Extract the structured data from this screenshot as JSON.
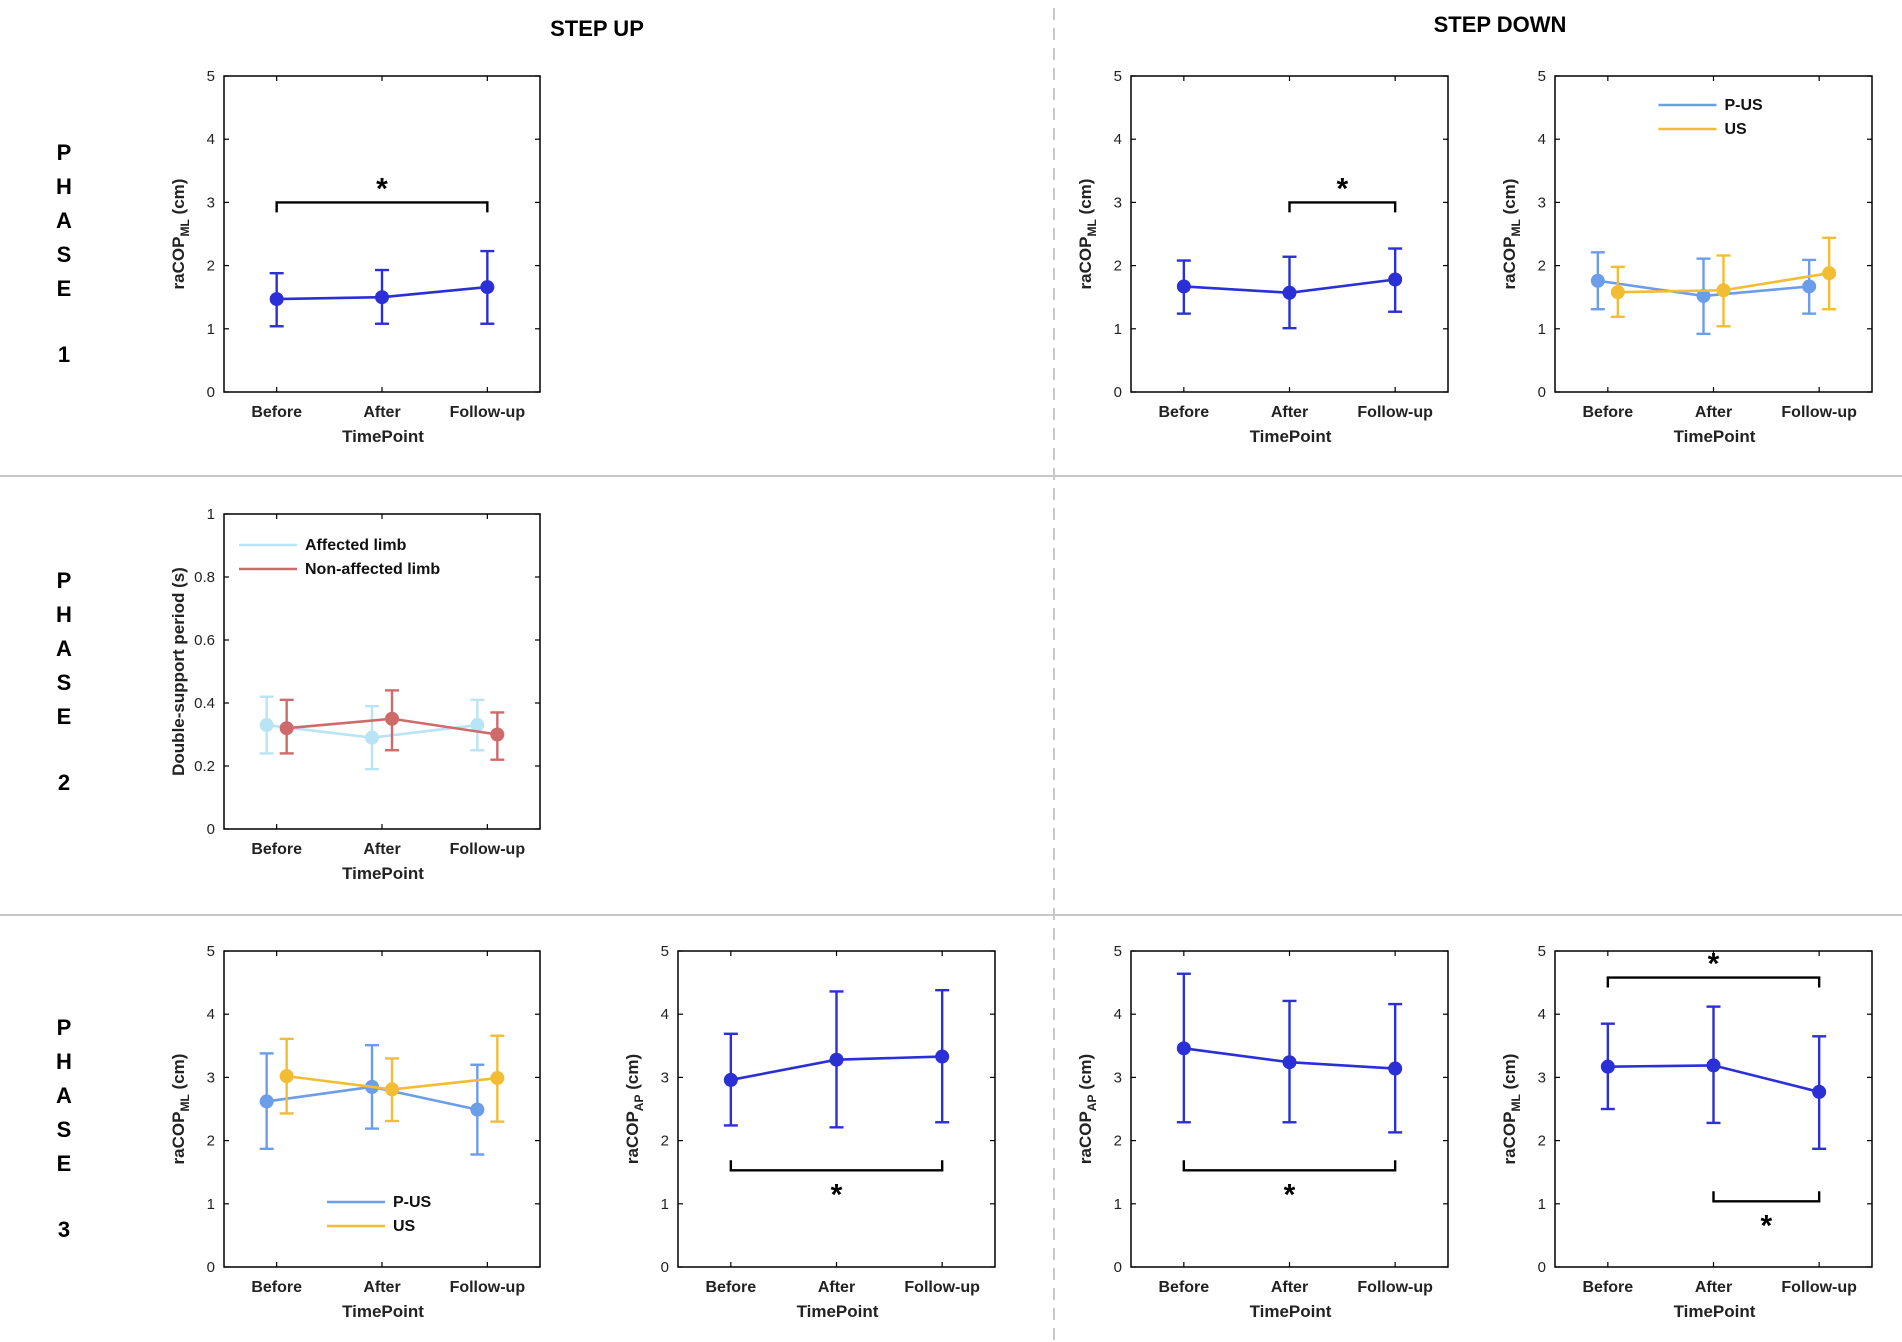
{
  "header": {
    "step_up": "STEP UP",
    "step_down": "STEP DOWN"
  },
  "phases": [
    {
      "letters": [
        "P",
        "H",
        "A",
        "S",
        "E"
      ],
      "number": "1"
    },
    {
      "letters": [
        "P",
        "H",
        "A",
        "S",
        "E"
      ],
      "number": "2"
    },
    {
      "letters": [
        "P",
        "H",
        "A",
        "S",
        "E"
      ],
      "number": "3"
    }
  ],
  "colors": {
    "main": "#2b2fd6",
    "p_us": "#6b9de8",
    "us": "#f2bd33",
    "affected": "#b9e4f5",
    "non_affected": "#cf6a6a",
    "axis": "#000000",
    "divider": "#c8c8c8"
  },
  "chart_data": [
    {
      "id": "p1-up",
      "type": "line",
      "title": "",
      "xlabel": "TimePoint",
      "ylabel": "raCOP",
      "ylabel_sub": "ML",
      "ylabel_unit": " (cm)",
      "categories": [
        "Before",
        "After",
        "Follow-up"
      ],
      "ylim": [
        0,
        5
      ],
      "yticks": [
        "0",
        "1",
        "2",
        "3",
        "4",
        "5"
      ],
      "series": [
        {
          "name": "",
          "color_key": "main",
          "values": [
            1.47,
            1.5,
            1.66
          ],
          "err_low": [
            1.04,
            1.08,
            1.08
          ],
          "err_high": [
            1.88,
            1.93,
            2.23
          ]
        }
      ],
      "legend": [],
      "annotations": [
        {
          "text": "*",
          "from": 0,
          "to": 2,
          "y": 3.0,
          "direction": "down"
        }
      ]
    },
    {
      "id": "p1-down-a",
      "type": "line",
      "title": "",
      "xlabel": "TimePoint",
      "ylabel": "raCOP",
      "ylabel_sub": "ML",
      "ylabel_unit": " (cm)",
      "categories": [
        "Before",
        "After",
        "Follow-up"
      ],
      "ylim": [
        0,
        5
      ],
      "yticks": [
        "0",
        "1",
        "2",
        "3",
        "4",
        "5"
      ],
      "series": [
        {
          "name": "",
          "color_key": "main",
          "values": [
            1.67,
            1.57,
            1.78
          ],
          "err_low": [
            1.24,
            1.01,
            1.27
          ],
          "err_high": [
            2.08,
            2.14,
            2.27
          ]
        }
      ],
      "legend": [],
      "annotations": [
        {
          "text": "*",
          "from": 1,
          "to": 2,
          "y": 3.0,
          "direction": "down"
        }
      ]
    },
    {
      "id": "p1-down-b",
      "type": "line",
      "title": "",
      "xlabel": "TimePoint",
      "ylabel": "raCOP",
      "ylabel_sub": "ML",
      "ylabel_unit": " (cm)",
      "categories": [
        "Before",
        "After",
        "Follow-up"
      ],
      "ylim": [
        0,
        5
      ],
      "yticks": [
        "0",
        "1",
        "2",
        "3",
        "4",
        "5"
      ],
      "series": [
        {
          "name": "P-US",
          "color_key": "p_us",
          "values": [
            1.76,
            1.52,
            1.67
          ],
          "err_low": [
            1.31,
            0.92,
            1.24
          ],
          "err_high": [
            2.21,
            2.11,
            2.09
          ]
        },
        {
          "name": "US",
          "color_key": "us",
          "values": [
            1.58,
            1.61,
            1.88
          ],
          "err_low": [
            1.19,
            1.04,
            1.31
          ],
          "err_high": [
            1.98,
            2.16,
            2.44
          ]
        }
      ],
      "legend": [
        "P-US",
        "US"
      ],
      "legend_position": "top-center",
      "annotations": []
    },
    {
      "id": "p2-up",
      "type": "line",
      "title": "",
      "xlabel": "TimePoint",
      "ylabel": "Double-support period (s)",
      "ylabel_sub": "",
      "ylabel_unit": "",
      "categories": [
        "Before",
        "After",
        "Follow-up"
      ],
      "ylim": [
        0,
        1
      ],
      "yticks": [
        "0",
        "0.2",
        "0.4",
        "0.6",
        "0.8",
        "1"
      ],
      "series": [
        {
          "name": "Affected limb",
          "color_key": "affected",
          "values": [
            0.33,
            0.29,
            0.33
          ],
          "err_low": [
            0.24,
            0.19,
            0.25
          ],
          "err_high": [
            0.42,
            0.39,
            0.41
          ]
        },
        {
          "name": "Non-affected limb",
          "color_key": "non_affected",
          "values": [
            0.32,
            0.35,
            0.3
          ],
          "err_low": [
            0.24,
            0.25,
            0.22
          ],
          "err_high": [
            0.41,
            0.44,
            0.37
          ]
        }
      ],
      "legend": [
        "Affected limb",
        "Non-affected limb"
      ],
      "legend_position": "top-left",
      "annotations": []
    },
    {
      "id": "p3-up-ml",
      "type": "line",
      "title": "",
      "xlabel": "TimePoint",
      "ylabel": "raCOP",
      "ylabel_sub": "ML",
      "ylabel_unit": " (cm)",
      "categories": [
        "Before",
        "After",
        "Follow-up"
      ],
      "ylim": [
        0,
        5
      ],
      "yticks": [
        "0",
        "1",
        "2",
        "3",
        "4",
        "5"
      ],
      "series": [
        {
          "name": "P-US",
          "color_key": "p_us",
          "values": [
            2.62,
            2.85,
            2.49
          ],
          "err_low": [
            1.87,
            2.19,
            1.78
          ],
          "err_high": [
            3.38,
            3.51,
            3.2
          ]
        },
        {
          "name": "US",
          "color_key": "us",
          "values": [
            3.02,
            2.81,
            2.99
          ],
          "err_low": [
            2.43,
            2.31,
            2.3
          ],
          "err_high": [
            3.61,
            3.3,
            3.66
          ]
        }
      ],
      "legend": [
        "P-US",
        "US"
      ],
      "legend_position": "bottom-center",
      "annotations": []
    },
    {
      "id": "p3-up-ap",
      "type": "line",
      "title": "",
      "xlabel": "TimePoint",
      "ylabel": "raCOP",
      "ylabel_sub": "AP",
      "ylabel_unit": " (cm)",
      "categories": [
        "Before",
        "After",
        "Follow-up"
      ],
      "ylim": [
        0,
        5
      ],
      "yticks": [
        "0",
        "1",
        "2",
        "3",
        "4",
        "5"
      ],
      "series": [
        {
          "name": "",
          "color_key": "main",
          "values": [
            2.96,
            3.28,
            3.33
          ],
          "err_low": [
            2.24,
            2.21,
            2.29
          ],
          "err_high": [
            3.69,
            4.36,
            4.38
          ]
        }
      ],
      "legend": [],
      "annotations": [
        {
          "text": "*",
          "from": 0,
          "to": 2,
          "y": 1.53,
          "direction": "up"
        }
      ]
    },
    {
      "id": "p3-down-ap",
      "type": "line",
      "title": "",
      "xlabel": "TimePoint",
      "ylabel": "raCOP",
      "ylabel_sub": "AP",
      "ylabel_unit": " (cm)",
      "categories": [
        "Before",
        "After",
        "Follow-up"
      ],
      "ylim": [
        0,
        5
      ],
      "yticks": [
        "0",
        "1",
        "2",
        "3",
        "4",
        "5"
      ],
      "series": [
        {
          "name": "",
          "color_key": "main",
          "values": [
            3.46,
            3.24,
            3.14
          ],
          "err_low": [
            2.29,
            2.29,
            2.13
          ],
          "err_high": [
            4.64,
            4.21,
            4.16
          ]
        }
      ],
      "legend": [],
      "annotations": [
        {
          "text": "*",
          "from": 0,
          "to": 2,
          "y": 1.53,
          "direction": "up"
        }
      ]
    },
    {
      "id": "p3-down-ml",
      "type": "line",
      "title": "",
      "xlabel": "TimePoint",
      "ylabel": "raCOP",
      "ylabel_sub": "ML",
      "ylabel_unit": " (cm)",
      "categories": [
        "Before",
        "After",
        "Follow-up"
      ],
      "ylim": [
        0,
        5
      ],
      "yticks": [
        "0",
        "1",
        "2",
        "3",
        "4",
        "5"
      ],
      "series": [
        {
          "name": "",
          "color_key": "main",
          "values": [
            3.17,
            3.19,
            2.77
          ],
          "err_low": [
            2.5,
            2.28,
            1.87
          ],
          "err_high": [
            3.85,
            4.12,
            3.65
          ]
        }
      ],
      "legend": [],
      "annotations": [
        {
          "text": "*",
          "from": 0,
          "to": 2,
          "y": 4.58,
          "direction": "down"
        },
        {
          "text": "*",
          "from": 1,
          "to": 2,
          "y": 1.04,
          "direction": "up"
        }
      ]
    }
  ]
}
